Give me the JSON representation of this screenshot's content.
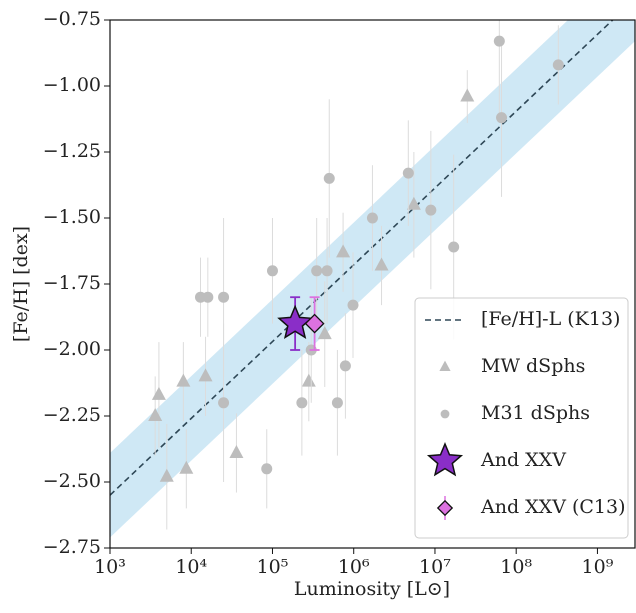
{
  "chart_data": {
    "type": "scatter",
    "xlabel": "Luminosity [L⊙]",
    "ylabel": "[Fe/H] [dex]",
    "xscale": "log",
    "xlim": [
      1000,
      2900000000.0
    ],
    "ylim": [
      -2.75,
      -0.75
    ],
    "xticks": [
      {
        "value": 1000,
        "label": "10³"
      },
      {
        "value": 10000,
        "label": "10⁴"
      },
      {
        "value": 100000,
        "label": "10⁵"
      },
      {
        "value": 1000000,
        "label": "10⁶"
      },
      {
        "value": 10000000,
        "label": "10⁷"
      },
      {
        "value": 100000000,
        "label": "10⁸"
      },
      {
        "value": 1000000000,
        "label": "10⁹"
      }
    ],
    "yticks": [
      {
        "value": -0.75,
        "label": "−0.75"
      },
      {
        "value": -1.0,
        "label": "−1.00"
      },
      {
        "value": -1.25,
        "label": "−1.25"
      },
      {
        "value": -1.5,
        "label": "−1.50"
      },
      {
        "value": -1.75,
        "label": "−1.75"
      },
      {
        "value": -2.0,
        "label": "−2.00"
      },
      {
        "value": -2.25,
        "label": "−2.25"
      },
      {
        "value": -2.5,
        "label": "−2.50"
      },
      {
        "value": -2.75,
        "label": "−2.75"
      }
    ],
    "legend": "lower right",
    "band": {
      "color": "#cfe8f5",
      "x": [
        1000,
        2900000000.0
      ],
      "lower": [
        -2.71,
        -0.83
      ],
      "upper": [
        -2.39,
        -0.51
      ]
    },
    "series": [
      {
        "name": "[Fe/H]-L (K13)",
        "marker": "dashed",
        "color": "#2e4756",
        "x": [
          1000,
          2900000000.0
        ],
        "y": [
          -2.55,
          -0.67
        ]
      },
      {
        "name": "MW dSphs",
        "marker": "triangle",
        "color": "#bdbdbd",
        "x": [
          25000000.0,
          5500000.0,
          2200000.0,
          740000.0,
          440000.0,
          280000.0,
          15000.0,
          8000.0,
          8700.0,
          5000.0,
          4000.0,
          3600.0,
          36000.0
        ],
        "y": [
          -1.04,
          -1.45,
          -1.68,
          -1.63,
          -1.94,
          -2.12,
          -2.1,
          -2.12,
          -2.45,
          -2.48,
          -2.17,
          -2.25,
          -2.39
        ],
        "yerr": [
          0.1,
          0.2,
          0.15,
          0.15,
          0.2,
          0.15,
          0.15,
          0.15,
          0.15,
          0.2,
          0.2,
          0.15,
          0.15
        ]
      },
      {
        "name": "M31 dSphs",
        "marker": "circle",
        "color": "#bdbdbd",
        "x": [
          62000000.0,
          330000000.0,
          66000000.0,
          4700000.0,
          500000.0,
          8900000.0,
          1700000.0,
          17000000.0,
          100000.0,
          350000.0,
          470000.0,
          980000.0,
          13000.0,
          16000.0,
          25000.0,
          300000.0,
          790000.0,
          230000.0,
          630000.0,
          25000.0,
          85000.0
        ],
        "y": [
          -0.83,
          -0.92,
          -1.12,
          -1.33,
          -1.35,
          -1.47,
          -1.5,
          -1.61,
          -1.7,
          -1.7,
          -1.7,
          -1.83,
          -1.8,
          -1.8,
          -1.8,
          -2.0,
          -2.06,
          -2.2,
          -2.2,
          -2.2,
          -2.45
        ],
        "yerr": [
          0.3,
          0.15,
          0.3,
          0.2,
          0.3,
          0.3,
          0.2,
          0.35,
          0.2,
          0.2,
          0.2,
          0.2,
          0.15,
          0.15,
          0.3,
          0.2,
          0.2,
          0.2,
          0.2,
          0.3,
          0.15
        ]
      },
      {
        "name": "And XXV",
        "marker": "star",
        "color": "#8a2ec8",
        "x": [
          190000.0
        ],
        "y": [
          -1.9
        ],
        "yerr": [
          0.1
        ]
      },
      {
        "name": "And XXV (C13)",
        "marker": "diamond",
        "color": "#dc72e0",
        "x": [
          330000.0
        ],
        "y": [
          -1.9
        ],
        "yerr": [
          0.1
        ]
      }
    ]
  }
}
